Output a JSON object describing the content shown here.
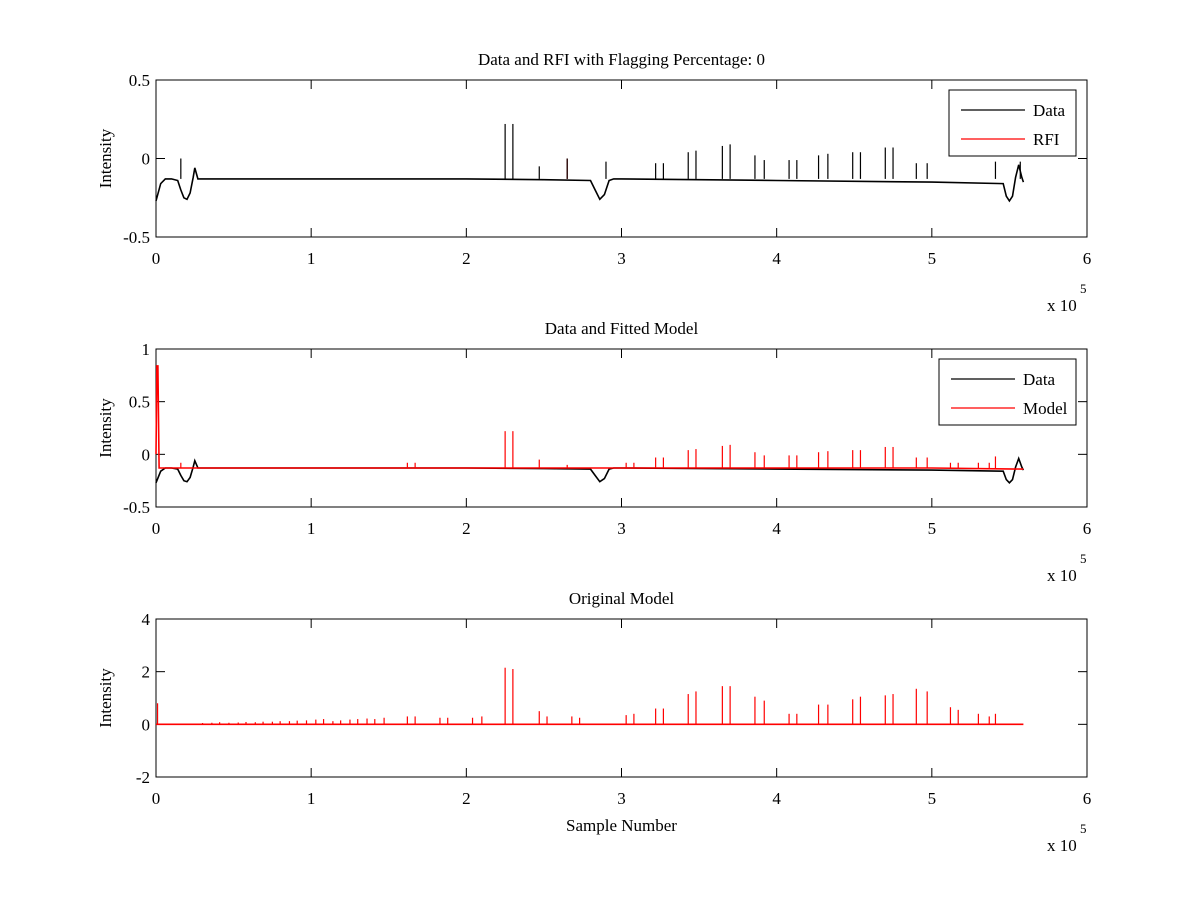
{
  "figure": {
    "background": "#ffffff"
  },
  "chart_data": [
    {
      "type": "line",
      "title": "Data and RFI with Flagging Percentage: 0",
      "xlabel": "",
      "ylabel": "Intensity",
      "xlim": [
        0,
        600000
      ],
      "ylim": [
        -0.5,
        0.5
      ],
      "x_ticks": [
        0,
        100000,
        200000,
        300000,
        400000,
        500000,
        600000
      ],
      "x_tick_labels": [
        "0",
        "1",
        "2",
        "3",
        "4",
        "5",
        "6"
      ],
      "y_ticks": [
        -0.5,
        0,
        0.5
      ],
      "y_tick_labels": [
        "-0.5",
        "0",
        "0.5"
      ],
      "x_multiplier": {
        "base": "x 10",
        "exponent": "5"
      },
      "grid": false,
      "legend_position": "top-right",
      "series": [
        {
          "name": "Data",
          "color": "#000000",
          "x": [
            0,
            3000,
            6000,
            10000,
            14000,
            16000,
            18000,
            20000,
            22000,
            24000,
            25000,
            27000,
            30000,
            100000,
            200000,
            250000,
            280000,
            283000,
            286000,
            289000,
            292000,
            295000,
            300000,
            400000,
            500000,
            546000,
            548000,
            550000,
            552000,
            554000,
            556000,
            558000,
            559000
          ],
          "y": [
            -0.27,
            -0.16,
            -0.13,
            -0.13,
            -0.14,
            -0.2,
            -0.25,
            -0.26,
            -0.22,
            -0.12,
            -0.06,
            -0.13,
            -0.13,
            -0.13,
            -0.13,
            -0.135,
            -0.14,
            -0.2,
            -0.26,
            -0.23,
            -0.14,
            -0.13,
            -0.13,
            -0.14,
            -0.15,
            -0.16,
            -0.24,
            -0.27,
            -0.24,
            -0.12,
            -0.04,
            -0.12,
            -0.15
          ]
        },
        {
          "name": "RFI",
          "color": "#ff0000",
          "x": [
            265000
          ],
          "y": [
            -0.12
          ],
          "spikes_x": [
            265000
          ],
          "spikes_y": [
            0.0
          ]
        }
      ],
      "spikes": {
        "series": "Data",
        "x": [
          16000,
          225000,
          230000,
          247000,
          265000,
          290000,
          322000,
          327000,
          343000,
          348000,
          365000,
          370000,
          386000,
          392000,
          408000,
          413000,
          427000,
          433000,
          449000,
          454000,
          470000,
          475000,
          490000,
          497000,
          541000,
          557000
        ],
        "y": [
          0.0,
          0.22,
          0.22,
          -0.05,
          0.0,
          -0.02,
          -0.03,
          -0.03,
          0.04,
          0.05,
          0.08,
          0.09,
          0.02,
          -0.01,
          -0.01,
          -0.01,
          0.02,
          0.03,
          0.04,
          0.04,
          0.07,
          0.07,
          -0.03,
          -0.03,
          -0.02,
          -0.02
        ]
      }
    },
    {
      "type": "line",
      "title": "Data and Fitted Model",
      "xlabel": "",
      "ylabel": "Intensity",
      "xlim": [
        0,
        600000
      ],
      "ylim": [
        -0.5,
        1
      ],
      "x_ticks": [
        0,
        100000,
        200000,
        300000,
        400000,
        500000,
        600000
      ],
      "x_tick_labels": [
        "0",
        "1",
        "2",
        "3",
        "4",
        "5",
        "6"
      ],
      "y_ticks": [
        -0.5,
        0,
        0.5,
        1
      ],
      "y_tick_labels": [
        "-0.5",
        "0",
        "0.5",
        "1"
      ],
      "x_multiplier": {
        "base": "x 10",
        "exponent": "5"
      },
      "grid": false,
      "legend_position": "top-right",
      "series": [
        {
          "name": "Data",
          "color": "#000000",
          "x": [
            0,
            3000,
            6000,
            10000,
            14000,
            16000,
            18000,
            20000,
            22000,
            24000,
            25000,
            27000,
            30000,
            100000,
            200000,
            250000,
            280000,
            283000,
            286000,
            289000,
            292000,
            295000,
            300000,
            400000,
            500000,
            546000,
            548000,
            550000,
            552000,
            554000,
            556000,
            558000,
            559000
          ],
          "y": [
            -0.27,
            -0.16,
            -0.13,
            -0.13,
            -0.14,
            -0.2,
            -0.25,
            -0.26,
            -0.22,
            -0.12,
            -0.06,
            -0.13,
            -0.13,
            -0.13,
            -0.13,
            -0.135,
            -0.14,
            -0.2,
            -0.26,
            -0.23,
            -0.14,
            -0.13,
            -0.13,
            -0.14,
            -0.15,
            -0.16,
            -0.24,
            -0.27,
            -0.24,
            -0.12,
            -0.04,
            -0.12,
            -0.15
          ]
        },
        {
          "name": "Model",
          "color": "#ff0000",
          "x": [
            0,
            600,
            1200,
            2000,
            5000,
            100000,
            200000,
            300000,
            400000,
            500000,
            559000
          ],
          "y": [
            0.0,
            0.84,
            0.84,
            -0.13,
            -0.13,
            -0.13,
            -0.13,
            -0.13,
            -0.13,
            -0.13,
            -0.14
          ]
        }
      ],
      "spikes": {
        "series": "Model",
        "x": [
          16000,
          162000,
          167000,
          225000,
          230000,
          247000,
          265000,
          303000,
          308000,
          322000,
          327000,
          343000,
          348000,
          365000,
          370000,
          386000,
          392000,
          408000,
          413000,
          427000,
          433000,
          449000,
          454000,
          470000,
          475000,
          490000,
          497000,
          512000,
          517000,
          530000,
          537000,
          541000
        ],
        "y": [
          -0.08,
          -0.08,
          -0.08,
          0.22,
          0.22,
          -0.05,
          -0.1,
          -0.08,
          -0.08,
          -0.03,
          -0.03,
          0.04,
          0.05,
          0.08,
          0.09,
          0.02,
          -0.01,
          -0.01,
          -0.01,
          0.02,
          0.03,
          0.04,
          0.04,
          0.07,
          0.07,
          -0.03,
          -0.03,
          -0.08,
          -0.08,
          -0.08,
          -0.08,
          -0.02
        ]
      }
    },
    {
      "type": "line",
      "title": "Original Model",
      "xlabel": "Sample Number",
      "ylabel": "Intensity",
      "xlim": [
        0,
        600000
      ],
      "ylim": [
        -2,
        4
      ],
      "x_ticks": [
        0,
        100000,
        200000,
        300000,
        400000,
        500000,
        600000
      ],
      "x_tick_labels": [
        "0",
        "1",
        "2",
        "3",
        "4",
        "5",
        "6"
      ],
      "y_ticks": [
        -2,
        0,
        2,
        4
      ],
      "y_tick_labels": [
        "-2",
        "0",
        "2",
        "4"
      ],
      "x_multiplier": {
        "base": "x 10",
        "exponent": "5"
      },
      "grid": false,
      "legend_position": "none",
      "series": [
        {
          "name": "",
          "color": "#ff0000",
          "x": [
            0,
            559000
          ],
          "y": [
            0,
            0
          ]
        }
      ],
      "spikes": {
        "series": "",
        "x": [
          1000,
          30000,
          36000,
          41000,
          47000,
          53000,
          58000,
          64000,
          69000,
          75000,
          80000,
          86000,
          91000,
          97000,
          103000,
          108000,
          114000,
          119000,
          125000,
          130000,
          136000,
          141000,
          147000,
          162000,
          167000,
          183000,
          188000,
          204000,
          210000,
          225000,
          230000,
          247000,
          252000,
          268000,
          273000,
          303000,
          308000,
          322000,
          327000,
          343000,
          348000,
          365000,
          370000,
          386000,
          392000,
          408000,
          413000,
          427000,
          433000,
          449000,
          454000,
          470000,
          475000,
          490000,
          497000,
          512000,
          517000,
          530000,
          537000,
          541000
        ],
        "y": [
          0.8,
          0.05,
          0.06,
          0.08,
          0.06,
          0.07,
          0.09,
          0.08,
          0.1,
          0.1,
          0.12,
          0.12,
          0.14,
          0.15,
          0.18,
          0.2,
          0.12,
          0.15,
          0.18,
          0.2,
          0.22,
          0.2,
          0.25,
          0.3,
          0.3,
          0.25,
          0.25,
          0.25,
          0.3,
          2.15,
          2.1,
          0.5,
          0.3,
          0.3,
          0.25,
          0.35,
          0.4,
          0.6,
          0.6,
          1.15,
          1.25,
          1.45,
          1.45,
          1.05,
          0.9,
          0.4,
          0.4,
          0.75,
          0.75,
          0.95,
          1.05,
          1.1,
          1.15,
          1.35,
          1.25,
          0.65,
          0.55,
          0.4,
          0.3,
          0.4
        ]
      }
    }
  ]
}
